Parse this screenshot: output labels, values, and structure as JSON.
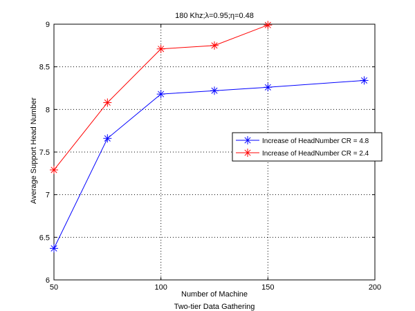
{
  "chart_data": {
    "type": "line",
    "title": "180 Khz;λ=0.95;η=0.48",
    "xlabel": "Number of Machine",
    "xlabel2": "Two-tier Data Gathering",
    "ylabel": "Average Support Head Number",
    "xlim": [
      50,
      200
    ],
    "ylim": [
      6,
      9
    ],
    "xticks": [
      50,
      100,
      150,
      200
    ],
    "yticks": [
      6,
      6.5,
      7,
      7.5,
      8,
      8.5,
      9
    ],
    "xtick_labels": [
      "50",
      "100",
      "150",
      "200"
    ],
    "ytick_labels": [
      "6",
      "6.5",
      "7",
      "7.5",
      "8",
      "8.5",
      "9"
    ],
    "grid": true,
    "legend_position": "right",
    "series": [
      {
        "name": "Increase of HeadNumber CR = 4.8",
        "color": "#0000ff",
        "marker": "asterisk",
        "x": [
          50,
          75,
          100,
          125,
          150,
          195
        ],
        "y": [
          6.37,
          7.66,
          8.18,
          8.22,
          8.26,
          8.34
        ]
      },
      {
        "name": "Increase of HeadNumber CR = 2.4",
        "color": "#ff0000",
        "marker": "asterisk",
        "x": [
          50,
          75,
          100,
          125,
          150
        ],
        "y": [
          7.29,
          8.08,
          8.71,
          8.75,
          8.99
        ]
      }
    ]
  }
}
